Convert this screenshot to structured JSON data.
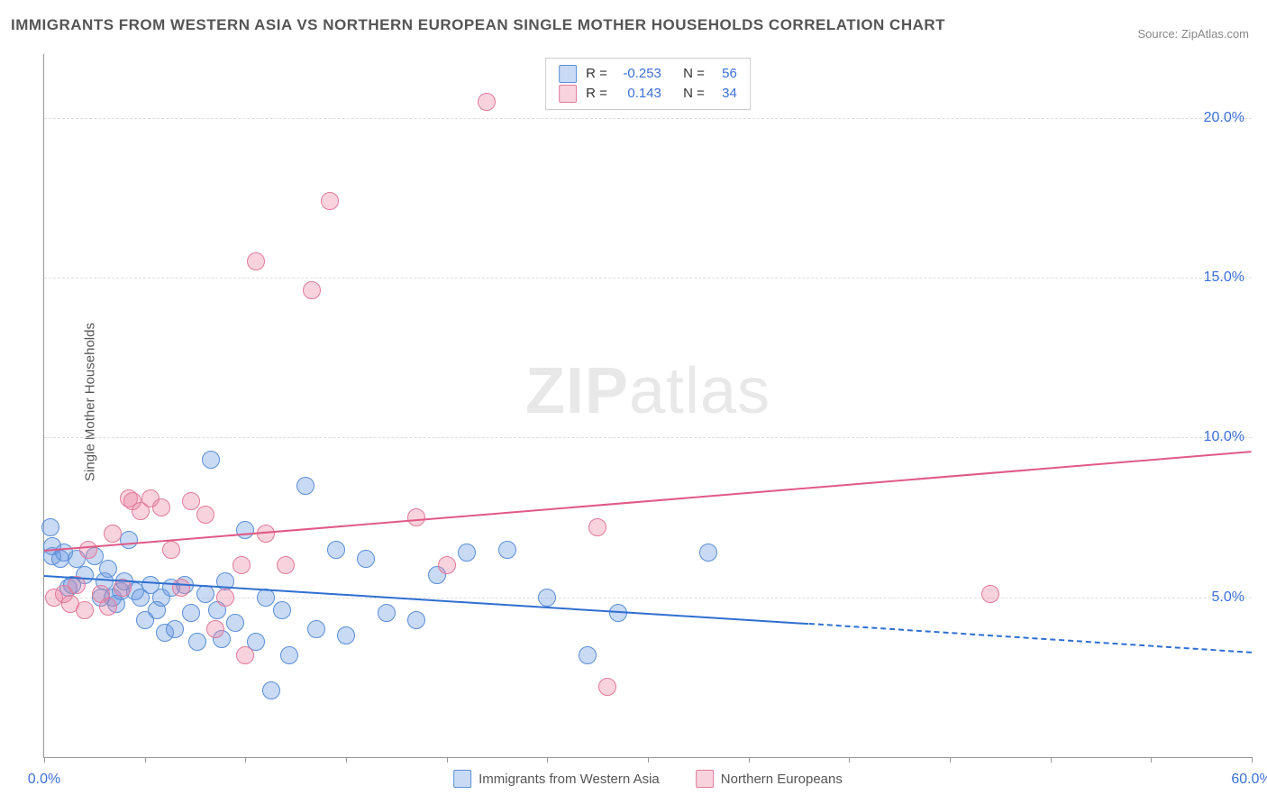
{
  "title": "IMMIGRANTS FROM WESTERN ASIA VS NORTHERN EUROPEAN SINGLE MOTHER HOUSEHOLDS CORRELATION CHART",
  "source": "Source: ZipAtlas.com",
  "ylabel": "Single Mother Households",
  "watermark_a": "ZIP",
  "watermark_b": "atlas",
  "chart": {
    "type": "scatter",
    "background_color": "#ffffff",
    "grid_color": "#dddddd",
    "axis_color": "#999999",
    "axis_label_color": "#3b6fd6",
    "xlim": [
      0,
      60
    ],
    "ylim": [
      0,
      22
    ],
    "yticks": [
      5,
      10,
      15,
      20
    ],
    "ytick_labels": [
      "5.0%",
      "10.0%",
      "15.0%",
      "20.0%"
    ],
    "xtick_positions": [
      0,
      5,
      10,
      15,
      20,
      25,
      30,
      35,
      40,
      45,
      50,
      55,
      60
    ],
    "xtick_labels": {
      "0": "0.0%",
      "60": "60.0%"
    },
    "point_radius": 9,
    "point_border_width": 1,
    "title_fontsize": 17,
    "axis_fontsize": 16
  },
  "series": [
    {
      "key": "blue",
      "label": "Immigrants from Western Asia",
      "fill": "rgba(99,150,226,0.35)",
      "stroke": "#5a8fd6",
      "r_label": "R =",
      "r_value": "-0.253",
      "n_label": "N =",
      "n_value": "56",
      "trend": {
        "color": "#2f6fd0",
        "x1": 0,
        "y1": 5.7,
        "x2": 38,
        "y2": 4.2,
        "dash_to_x": 60,
        "dash_to_y": 3.3
      },
      "points": [
        [
          0.3,
          7.2
        ],
        [
          0.4,
          6.3
        ],
        [
          0.4,
          6.6
        ],
        [
          0.8,
          6.2
        ],
        [
          1.0,
          6.4
        ],
        [
          1.2,
          5.3
        ],
        [
          1.4,
          5.4
        ],
        [
          1.6,
          6.2
        ],
        [
          2.0,
          5.7
        ],
        [
          2.5,
          6.3
        ],
        [
          2.8,
          5.0
        ],
        [
          3.0,
          5.5
        ],
        [
          3.2,
          5.9
        ],
        [
          3.4,
          5.0
        ],
        [
          3.6,
          4.8
        ],
        [
          3.8,
          5.2
        ],
        [
          4.0,
          5.5
        ],
        [
          4.2,
          6.8
        ],
        [
          4.5,
          5.2
        ],
        [
          4.8,
          5.0
        ],
        [
          5.0,
          4.3
        ],
        [
          5.3,
          5.4
        ],
        [
          5.6,
          4.6
        ],
        [
          5.8,
          5.0
        ],
        [
          6.0,
          3.9
        ],
        [
          6.3,
          5.3
        ],
        [
          6.5,
          4.0
        ],
        [
          7.0,
          5.4
        ],
        [
          7.3,
          4.5
        ],
        [
          7.6,
          3.6
        ],
        [
          8.0,
          5.1
        ],
        [
          8.3,
          9.3
        ],
        [
          8.6,
          4.6
        ],
        [
          8.8,
          3.7
        ],
        [
          9.0,
          5.5
        ],
        [
          9.5,
          4.2
        ],
        [
          10.0,
          7.1
        ],
        [
          10.5,
          3.6
        ],
        [
          11.0,
          5.0
        ],
        [
          11.3,
          2.1
        ],
        [
          11.8,
          4.6
        ],
        [
          12.2,
          3.2
        ],
        [
          13.0,
          8.5
        ],
        [
          13.5,
          4.0
        ],
        [
          14.5,
          6.5
        ],
        [
          15.0,
          3.8
        ],
        [
          16.0,
          6.2
        ],
        [
          17.0,
          4.5
        ],
        [
          18.5,
          4.3
        ],
        [
          19.5,
          5.7
        ],
        [
          21.0,
          6.4
        ],
        [
          23.0,
          6.5
        ],
        [
          25.0,
          5.0
        ],
        [
          27.0,
          3.2
        ],
        [
          28.5,
          4.5
        ],
        [
          33.0,
          6.4
        ]
      ]
    },
    {
      "key": "pink",
      "label": "Northern Europeans",
      "fill": "rgba(236,130,160,0.35)",
      "stroke": "#e07a9a",
      "r_label": "R =",
      "r_value": "0.143",
      "n_label": "N =",
      "n_value": "34",
      "trend": {
        "color": "#e05a85",
        "x1": 0,
        "y1": 6.5,
        "x2": 60,
        "y2": 9.6,
        "dash_to_x": null,
        "dash_to_y": null
      },
      "points": [
        [
          0.5,
          5.0
        ],
        [
          1.0,
          5.1
        ],
        [
          1.3,
          4.8
        ],
        [
          1.6,
          5.4
        ],
        [
          2.0,
          4.6
        ],
        [
          2.2,
          6.5
        ],
        [
          2.8,
          5.1
        ],
        [
          3.2,
          4.7
        ],
        [
          3.4,
          7.0
        ],
        [
          3.9,
          5.3
        ],
        [
          4.2,
          8.1
        ],
        [
          4.4,
          8.0
        ],
        [
          4.8,
          7.7
        ],
        [
          5.3,
          8.1
        ],
        [
          5.8,
          7.8
        ],
        [
          6.3,
          6.5
        ],
        [
          6.8,
          5.3
        ],
        [
          7.3,
          8.0
        ],
        [
          8.0,
          7.6
        ],
        [
          8.5,
          4.0
        ],
        [
          9.0,
          5.0
        ],
        [
          9.8,
          6.0
        ],
        [
          10.0,
          3.2
        ],
        [
          10.5,
          15.5
        ],
        [
          11.0,
          7.0
        ],
        [
          12.0,
          6.0
        ],
        [
          13.3,
          14.6
        ],
        [
          14.2,
          17.4
        ],
        [
          18.5,
          7.5
        ],
        [
          20.0,
          6.0
        ],
        [
          22.0,
          20.5
        ],
        [
          27.5,
          7.2
        ],
        [
          28.0,
          2.2
        ],
        [
          47.0,
          5.1
        ]
      ]
    }
  ]
}
